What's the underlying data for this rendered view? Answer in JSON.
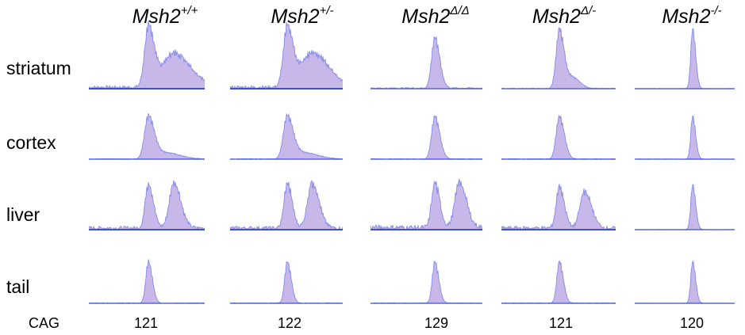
{
  "figure": {
    "genotypes": [
      {
        "base": "Msh2",
        "sup": "+/+"
      },
      {
        "base": "Msh2",
        "sup": "+/-"
      },
      {
        "base": "Msh2",
        "sup": "Δ/Δ"
      },
      {
        "base": "Msh2",
        "sup": "Δ/-"
      },
      {
        "base": "Msh2",
        "sup": "-/-"
      }
    ],
    "tissues": [
      "striatum",
      "cortex",
      "liver",
      "tail"
    ],
    "cag_label": "CAG",
    "cag_values": [
      "121",
      "122",
      "129",
      "121",
      "120"
    ]
  },
  "colors": {
    "trace_fill": "#c8b8ea",
    "trace_line": "#3b4fd8",
    "text": "#000000"
  },
  "profiles": [
    [
      {
        "peaks": [
          [
            0.0,
            1.0,
            6
          ],
          [
            0.22,
            0.58,
            17
          ]
        ],
        "noise": 0.05
      },
      {
        "peaks": [
          [
            0.0,
            0.82,
            6
          ],
          [
            0.15,
            0.12,
            14
          ]
        ],
        "noise": 0.01
      },
      {
        "peaks": [
          [
            0.0,
            0.8,
            5
          ],
          [
            0.22,
            0.82,
            7
          ]
        ],
        "noise": 0.06
      },
      {
        "peaks": [
          [
            0.0,
            0.82,
            4
          ]
        ],
        "noise": 0.01
      }
    ],
    [
      {
        "peaks": [
          [
            0.0,
            1.0,
            6
          ],
          [
            0.22,
            0.58,
            17
          ]
        ],
        "noise": 0.05
      },
      {
        "peaks": [
          [
            0.0,
            0.82,
            6
          ],
          [
            0.15,
            0.12,
            14
          ]
        ],
        "noise": 0.01
      },
      {
        "peaks": [
          [
            0.0,
            0.8,
            5
          ],
          [
            0.22,
            0.82,
            7
          ]
        ],
        "noise": 0.06
      },
      {
        "peaks": [
          [
            0.0,
            0.82,
            4
          ]
        ],
        "noise": 0.01
      }
    ],
    [
      {
        "peaks": [
          [
            0.0,
            0.85,
            5
          ]
        ],
        "noise": 0.02
      },
      {
        "peaks": [
          [
            0.0,
            0.82,
            5
          ]
        ],
        "noise": 0.01
      },
      {
        "peaks": [
          [
            0.0,
            0.8,
            5
          ],
          [
            0.22,
            0.82,
            7
          ]
        ],
        "noise": 0.08
      },
      {
        "peaks": [
          [
            0.0,
            0.82,
            4
          ]
        ],
        "noise": 0.01
      }
    ],
    [
      {
        "peaks": [
          [
            0.0,
            1.0,
            5
          ],
          [
            0.12,
            0.18,
            7
          ]
        ],
        "noise": 0.01
      },
      {
        "peaks": [
          [
            0.0,
            0.82,
            5
          ]
        ],
        "noise": 0.01
      },
      {
        "peaks": [
          [
            0.0,
            0.75,
            5
          ],
          [
            0.22,
            0.66,
            7
          ]
        ],
        "noise": 0.06
      },
      {
        "peaks": [
          [
            0.0,
            0.82,
            4
          ]
        ],
        "noise": 0.01
      }
    ],
    [
      {
        "peaks": [
          [
            0.0,
            1.0,
            3
          ]
        ],
        "noise": 0.005
      },
      {
        "peaks": [
          [
            0.0,
            0.82,
            3
          ]
        ],
        "noise": 0.005
      },
      {
        "peaks": [
          [
            0.0,
            0.8,
            3
          ]
        ],
        "noise": 0.005
      },
      {
        "peaks": [
          [
            0.0,
            0.82,
            3
          ]
        ],
        "noise": 0.005
      }
    ]
  ]
}
